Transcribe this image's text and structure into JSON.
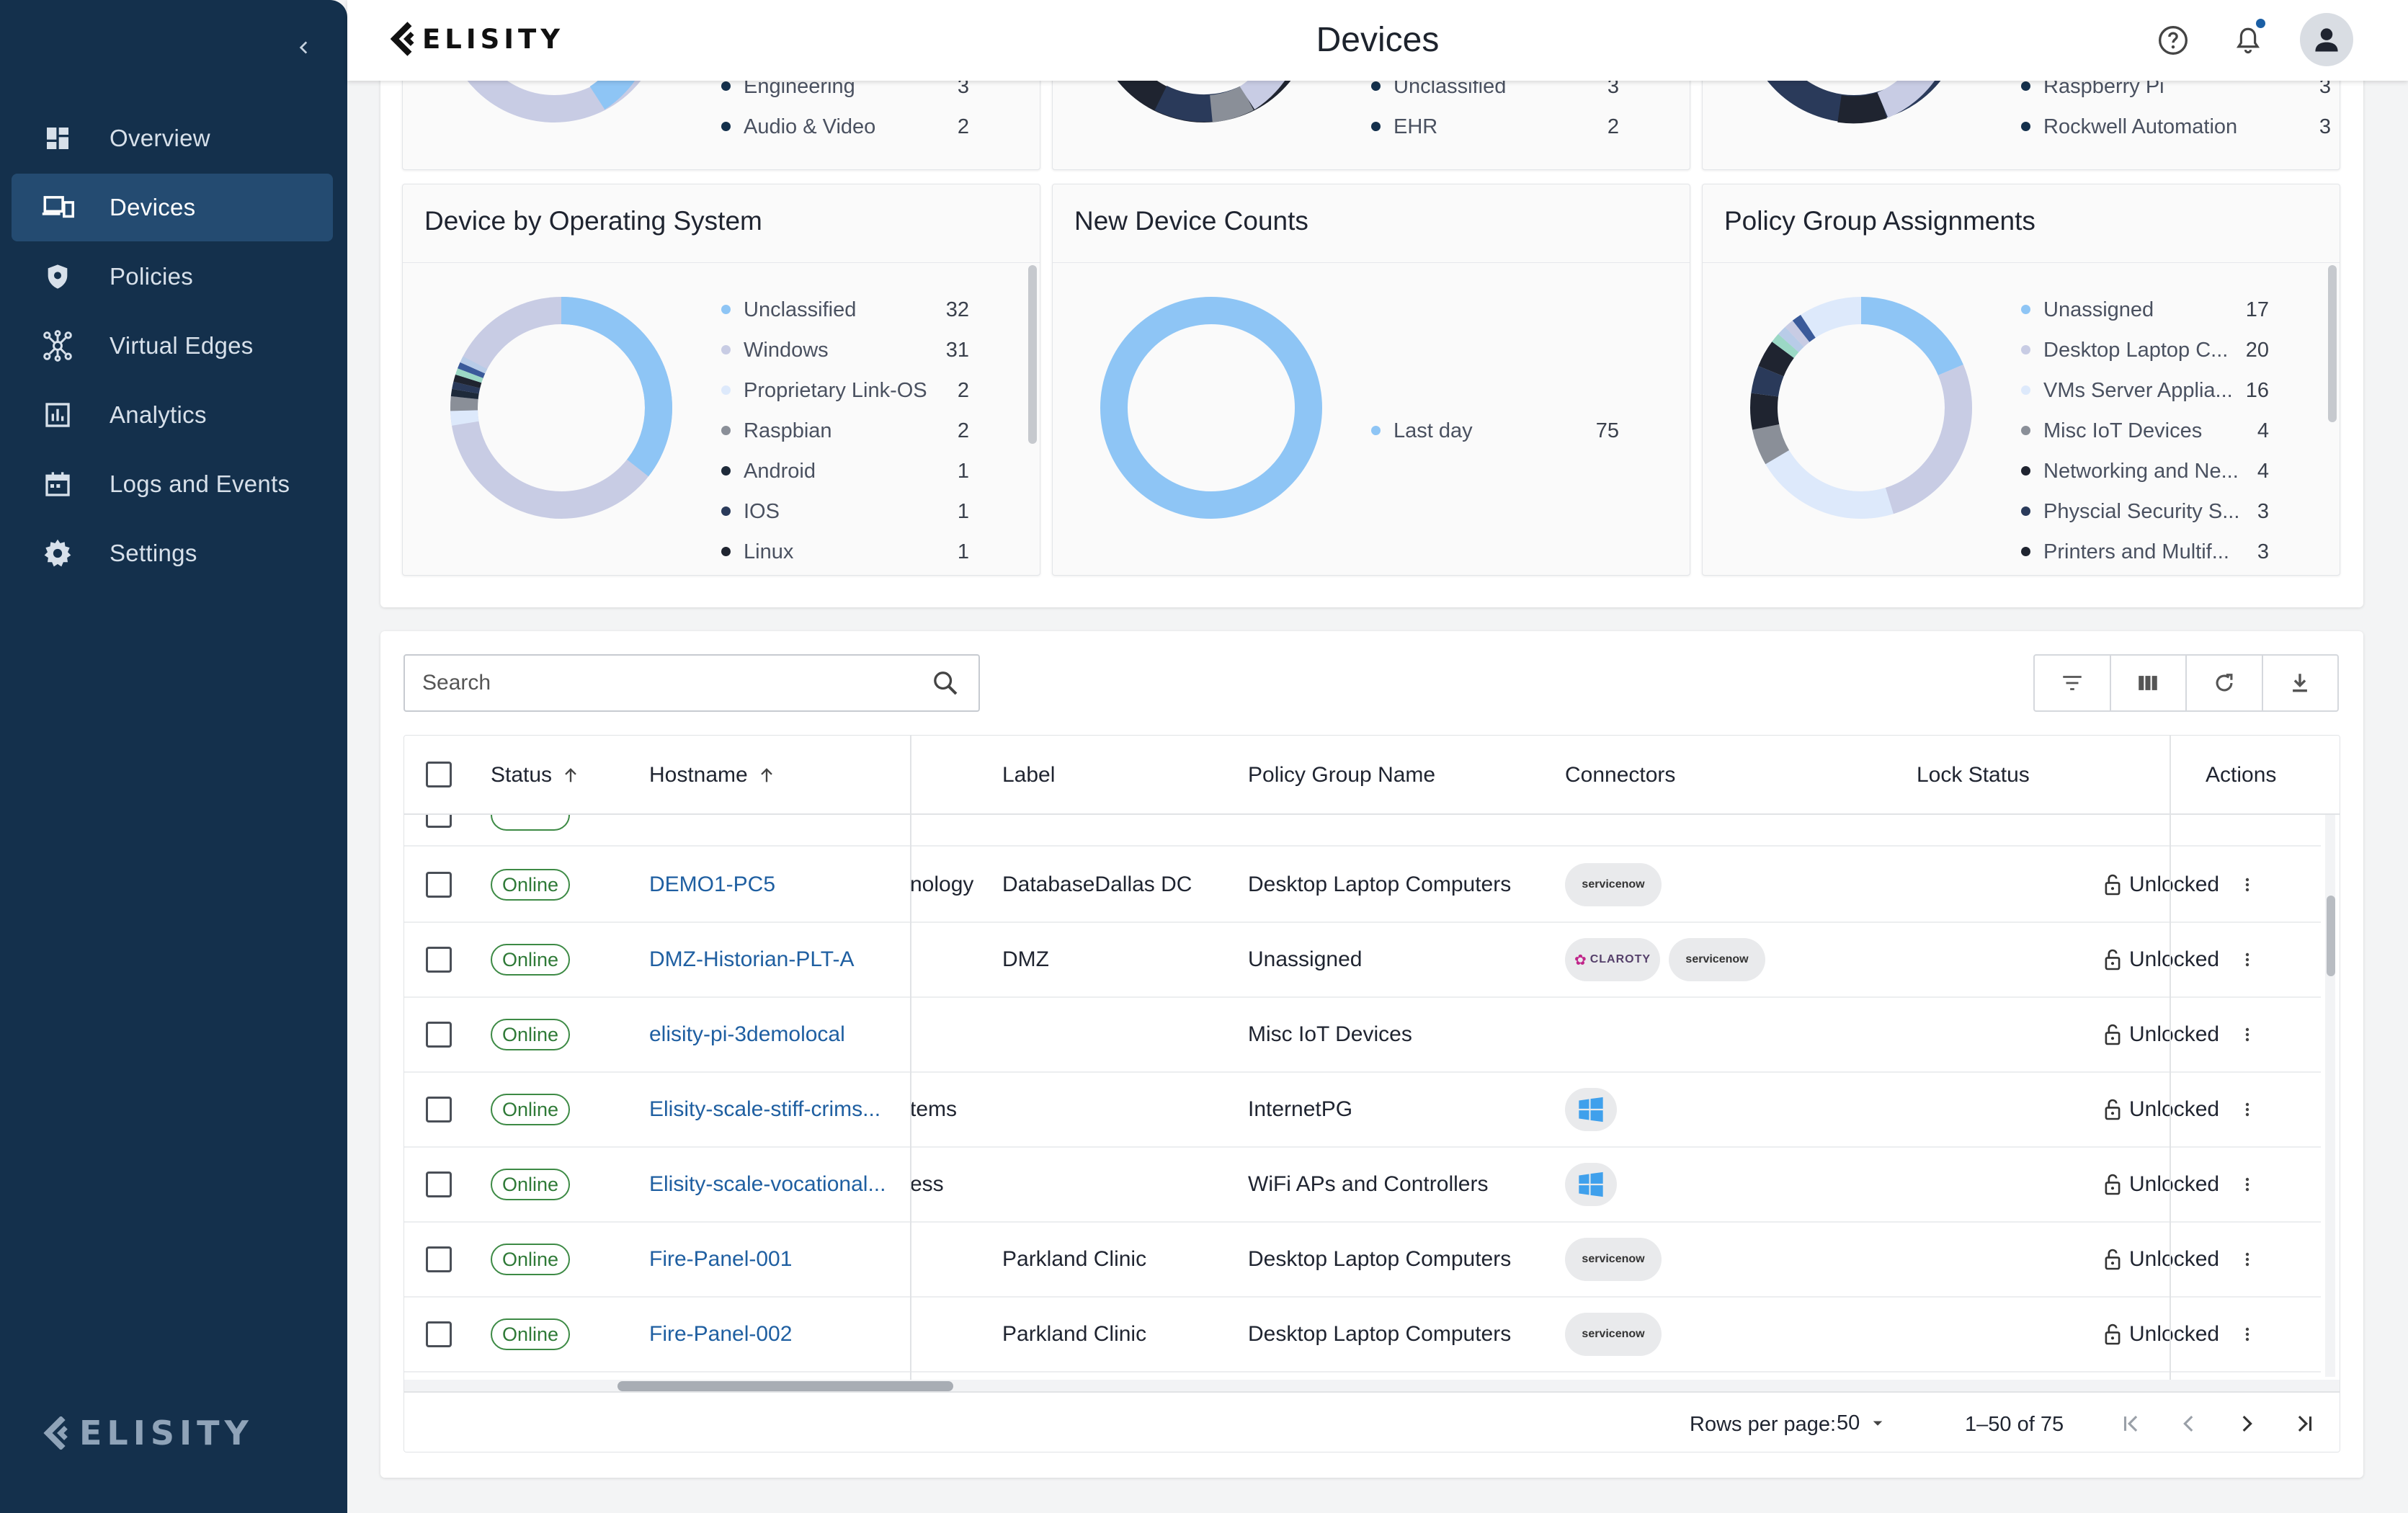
{
  "header": {
    "title": "Devices",
    "logo_text": "ELISITY"
  },
  "sidebar": {
    "items": [
      {
        "label": "Overview",
        "icon": "dashboard-icon",
        "active": false
      },
      {
        "label": "Devices",
        "icon": "devices-icon",
        "active": true
      },
      {
        "label": "Policies",
        "icon": "shield-icon",
        "active": false
      },
      {
        "label": "Virtual Edges",
        "icon": "network-nodes-icon",
        "active": false
      },
      {
        "label": "Analytics",
        "icon": "bar-chart-icon",
        "active": false
      },
      {
        "label": "Logs and Events",
        "icon": "calendar-icon",
        "active": false
      },
      {
        "label": "Settings",
        "icon": "gear-icon",
        "active": false
      }
    ],
    "logo_text": "ELISITY"
  },
  "top_cards": [
    {
      "legend": [
        {
          "label": "Engineering",
          "count": "3",
          "color": "#14304c"
        },
        {
          "label": "Audio & Video",
          "count": "2",
          "color": "#14304c"
        }
      ]
    },
    {
      "legend": [
        {
          "label": "Unclassified",
          "count": "3",
          "color": "#14304c"
        },
        {
          "label": "EHR",
          "count": "2",
          "color": "#14304c"
        }
      ]
    },
    {
      "legend": [
        {
          "label": "Raspberry Pi",
          "count": "3",
          "color": "#14304c"
        },
        {
          "label": "Rockwell Automation",
          "count": "3",
          "color": "#14304c"
        }
      ]
    }
  ],
  "cards": {
    "os": {
      "title": "Device by Operating System",
      "legend": [
        {
          "label": "Unclassified",
          "count": "32",
          "color": "#8ec5f5"
        },
        {
          "label": "Windows",
          "count": "31",
          "color": "#c8cce4"
        },
        {
          "label": "Proprietary Link-OS",
          "count": "2",
          "color": "#dde9fb"
        },
        {
          "label": "Raspbian",
          "count": "2",
          "color": "#8a8f98"
        },
        {
          "label": "Android",
          "count": "1",
          "color": "#1e2a3a"
        },
        {
          "label": "IOS",
          "count": "1",
          "color": "#2a3a5a"
        },
        {
          "label": "Linux",
          "count": "1",
          "color": "#1f2430"
        }
      ]
    },
    "new_device": {
      "title": "New Device Counts",
      "legend": [
        {
          "label": "Last day",
          "count": "75",
          "color": "#8ec5f5"
        }
      ]
    },
    "policy_group": {
      "title": "Policy Group Assignments",
      "legend": [
        {
          "label": "Unassigned",
          "count": "17",
          "color": "#8ec5f5"
        },
        {
          "label": "Desktop Laptop C...",
          "count": "20",
          "color": "#c8cce4"
        },
        {
          "label": "VMs Server Applia...",
          "count": "16",
          "color": "#dde9fb"
        },
        {
          "label": "Misc IoT Devices",
          "count": "4",
          "color": "#8a8f98"
        },
        {
          "label": "Networking and Ne...",
          "count": "4",
          "color": "#1f2430"
        },
        {
          "label": "Physcial Security S...",
          "count": "3",
          "color": "#2a3a5a"
        },
        {
          "label": "Printers and Multif...",
          "count": "3",
          "color": "#1f2430"
        }
      ]
    }
  },
  "search": {
    "placeholder": "Search"
  },
  "toolbar": {
    "icons": [
      "filter-icon",
      "columns-icon",
      "refresh-icon",
      "download-icon"
    ]
  },
  "table": {
    "columns": {
      "status": "Status",
      "hostname": "Hostname",
      "label": "Label",
      "policy_group": "Policy Group Name",
      "connectors": "Connectors",
      "lock_status": "Lock Status",
      "actions": "Actions"
    },
    "rows": [
      {
        "status": "Online",
        "hostname": "DEMO1-PC5",
        "partial": "nology",
        "label": "DatabaseDallas DC",
        "policy_group": "Desktop Laptop Computers",
        "connectors": [
          "servicenow"
        ],
        "lock": "Unlocked"
      },
      {
        "status": "Online",
        "hostname": "DMZ-Historian-PLT-A",
        "partial": "",
        "label": "DMZ",
        "policy_group": "Unassigned",
        "connectors": [
          "claroty",
          "servicenow"
        ],
        "lock": "Unlocked"
      },
      {
        "status": "Online",
        "hostname": "elisity-pi-3demolocal",
        "partial": "",
        "label": "",
        "policy_group": "Misc IoT Devices",
        "connectors": [],
        "lock": "Unlocked"
      },
      {
        "status": "Online",
        "hostname": "Elisity-scale-stiff-crims...",
        "partial": "tems",
        "label": "",
        "policy_group": "InternetPG",
        "connectors": [
          "windows"
        ],
        "lock": "Unlocked"
      },
      {
        "status": "Online",
        "hostname": "Elisity-scale-vocational...",
        "partial": "ess",
        "label": "",
        "policy_group": "WiFi APs and Controllers",
        "connectors": [
          "windows"
        ],
        "lock": "Unlocked"
      },
      {
        "status": "Online",
        "hostname": "Fire-Panel-001",
        "partial": "",
        "label": "Parkland Clinic",
        "policy_group": "Desktop Laptop Computers",
        "connectors": [
          "servicenow"
        ],
        "lock": "Unlocked"
      },
      {
        "status": "Online",
        "hostname": "Fire-Panel-002",
        "partial": "",
        "label": "Parkland Clinic",
        "policy_group": "Desktop Laptop Computers",
        "connectors": [
          "servicenow"
        ],
        "lock": "Unlocked"
      }
    ],
    "connector_text": {
      "servicenow": "servicenow",
      "claroty": "CLAROTY"
    }
  },
  "pagination": {
    "rows_per_page_label": "Rows per page:",
    "rows_per_page": "50",
    "range": "1–50 of 75"
  }
}
